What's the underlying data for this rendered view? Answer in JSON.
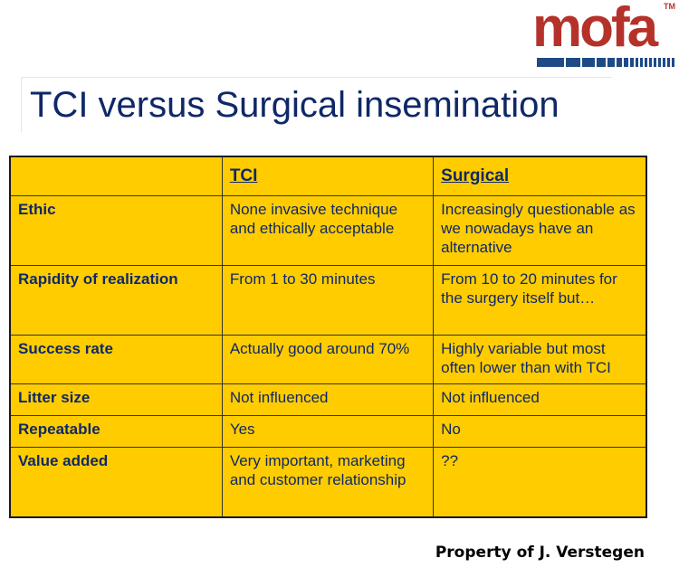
{
  "logo": {
    "text": "mofa",
    "tm": "TM"
  },
  "title": "TCI versus Surgical insemination",
  "table": {
    "headers": [
      "",
      "TCI",
      "Surgical"
    ],
    "rows": [
      {
        "label": "Ethic",
        "tci": "None invasive technique and ethically acceptable",
        "surgical": "Increasingly questionable as we nowadays have an alternative"
      },
      {
        "label": "Rapidity of realization",
        "tci": "From 1 to 30 minutes",
        "surgical": "From 10 to 20 minutes for the surgery itself but…"
      },
      {
        "label": "Success rate",
        "tci": "Actually good around 70%",
        "surgical": "Highly variable but most often lower than with TCI"
      },
      {
        "label": "Litter size",
        "tci": "Not influenced",
        "surgical": "Not influenced"
      },
      {
        "label": "Repeatable",
        "tci": "Yes",
        "surgical": "No"
      },
      {
        "label": "Value added",
        "tci": "Very important, marketing and customer relationship",
        "surgical": "??"
      }
    ]
  },
  "footer": "Property of J. Verstegen"
}
